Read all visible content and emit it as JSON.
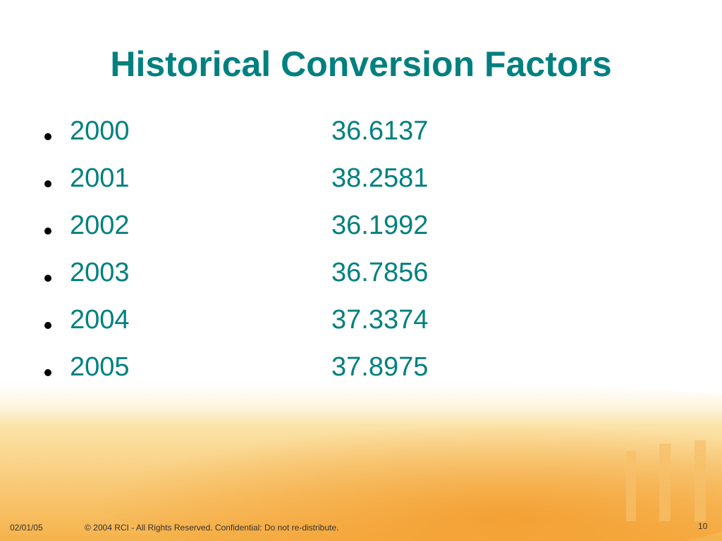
{
  "title": "Historical Conversion Factors",
  "list": [
    {
      "year": "2000",
      "factor": "36.6137"
    },
    {
      "year": "2001",
      "factor": "38.2581"
    },
    {
      "year": "2002",
      "factor": "36.1992"
    },
    {
      "year": "2003",
      "factor": "36.7856"
    },
    {
      "year": "2004",
      "factor": "37.3374"
    },
    {
      "year": "2005",
      "factor": "37.8975"
    }
  ],
  "footer": {
    "date": "02/01/05",
    "copyright": "© 2004 RCI - All Rights Reserved. Confidential: Do not re-distribute.",
    "page": "10"
  }
}
